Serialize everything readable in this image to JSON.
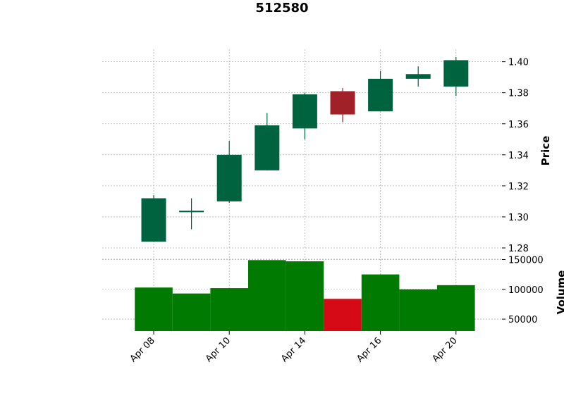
{
  "chart_data": {
    "type": "candlestick",
    "title": "512580",
    "price_panel": {
      "ylabel": "Price",
      "ylim": [
        1.28,
        1.408
      ],
      "yticks": [
        "1.28",
        "1.30",
        "1.32",
        "1.34",
        "1.36",
        "1.38",
        "1.40"
      ],
      "grid": true
    },
    "volume_panel": {
      "ylabel": "Volume",
      "ylim": [
        30000,
        160000
      ],
      "yticks": [
        "50000",
        "100000",
        "150000"
      ],
      "grid": true
    },
    "x_ticks": [
      {
        "index": 0,
        "label": "Apr 08"
      },
      {
        "index": 2,
        "label": "Apr 10"
      },
      {
        "index": 4,
        "label": "Apr 14"
      },
      {
        "index": 6,
        "label": "Apr 16"
      },
      {
        "index": 8,
        "label": "Apr 20"
      }
    ],
    "candles": [
      {
        "open": 1.284,
        "high": 1.314,
        "low": 1.284,
        "close": 1.312,
        "volume": 103000
      },
      {
        "open": 1.303,
        "high": 1.312,
        "low": 1.292,
        "close": 1.304,
        "volume": 93000
      },
      {
        "open": 1.31,
        "high": 1.349,
        "low": 1.309,
        "close": 1.34,
        "volume": 102000
      },
      {
        "open": 1.33,
        "high": 1.367,
        "low": 1.33,
        "close": 1.359,
        "volume": 149000
      },
      {
        "open": 1.357,
        "high": 1.38,
        "low": 1.35,
        "close": 1.379,
        "volume": 147000
      },
      {
        "open": 1.381,
        "high": 1.383,
        "low": 1.361,
        "close": 1.366,
        "volume": 84000
      },
      {
        "open": 1.368,
        "high": 1.394,
        "low": 1.368,
        "close": 1.389,
        "volume": 125000
      },
      {
        "open": 1.389,
        "high": 1.397,
        "low": 1.384,
        "close": 1.392,
        "volume": 100000
      },
      {
        "open": 1.384,
        "high": 1.403,
        "low": 1.378,
        "close": 1.401,
        "volume": 107000
      }
    ],
    "colors": {
      "candle_up": "#006340",
      "candle_down": "#a02128",
      "volume_up": "#007a00",
      "volume_down": "#d60a16"
    }
  }
}
